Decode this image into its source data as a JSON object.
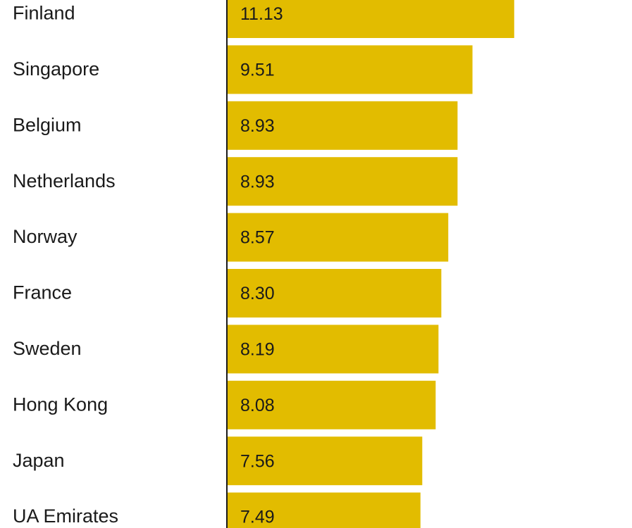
{
  "chart_data": {
    "type": "bar",
    "orientation": "horizontal",
    "categories": [
      "Finland",
      "Singapore",
      "Belgium",
      "Netherlands",
      "Norway",
      "France",
      "Sweden",
      "Hong Kong",
      "Japan",
      "UA Emirates"
    ],
    "values": [
      11.13,
      9.51,
      8.93,
      8.93,
      8.57,
      8.3,
      8.19,
      8.08,
      7.56,
      7.49
    ],
    "value_labels": [
      "11.13",
      "9.51",
      "8.93",
      "8.93",
      "8.57",
      "8.30",
      "8.19",
      "8.08",
      "7.56",
      "7.49"
    ],
    "title": "",
    "xlabel": "",
    "ylabel": "",
    "xlim": [
      0,
      13.3
    ],
    "grid": false,
    "legend": "none",
    "bar_color": "#E2BC00",
    "axis_color": "#1a1a1a"
  }
}
